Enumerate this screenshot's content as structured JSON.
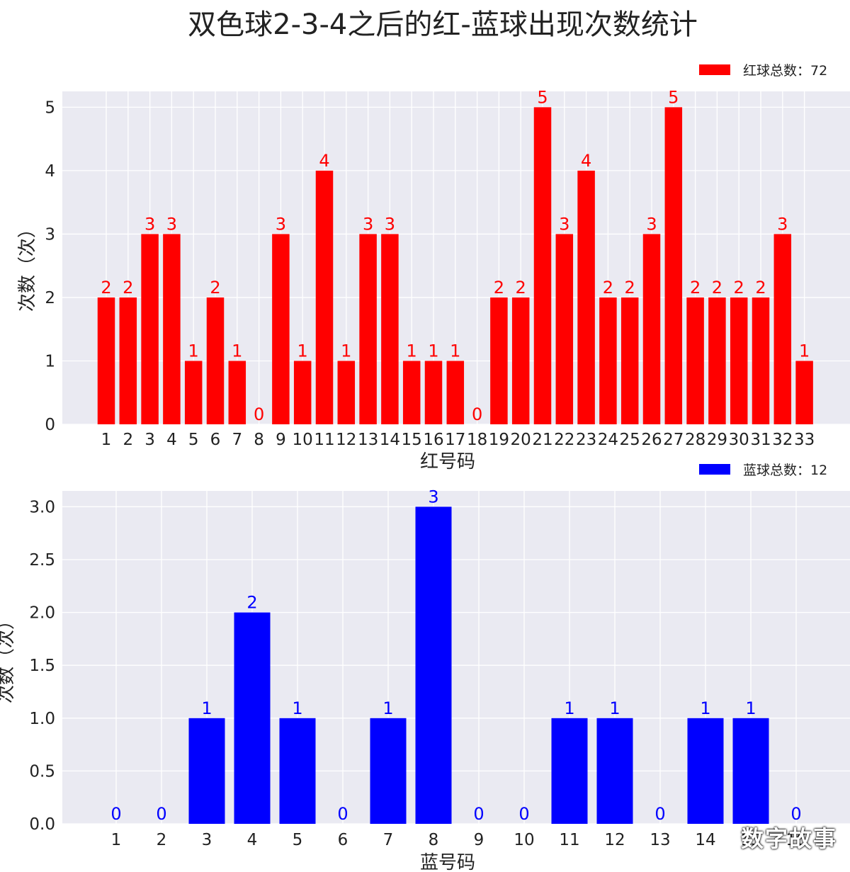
{
  "title": "双色球2-3-4之后的红-蓝球出现次数统计",
  "watermark": "数字故事",
  "colors": {
    "red": "#ff0000",
    "blue": "#0000ff",
    "background": "#eaeaf2",
    "grid": "#ffffff",
    "text": "#222222"
  },
  "chart_data": [
    {
      "type": "bar",
      "legend": "红球总数：72",
      "xlabel": "红号码",
      "ylabel": "次数（次）",
      "ylim": [
        0,
        5.25
      ],
      "yticks": [
        "0",
        "1",
        "2",
        "3",
        "4",
        "5"
      ],
      "color": "#ff0000",
      "categories": [
        "1",
        "2",
        "3",
        "4",
        "5",
        "6",
        "7",
        "8",
        "9",
        "10",
        "11",
        "12",
        "13",
        "14",
        "15",
        "16",
        "17",
        "18",
        "19",
        "20",
        "21",
        "22",
        "23",
        "24",
        "25",
        "26",
        "27",
        "28",
        "29",
        "30",
        "31",
        "32",
        "33"
      ],
      "values": [
        2,
        2,
        3,
        3,
        1,
        2,
        1,
        0,
        3,
        1,
        4,
        1,
        3,
        3,
        1,
        1,
        1,
        0,
        2,
        2,
        5,
        3,
        4,
        2,
        2,
        3,
        5,
        2,
        2,
        2,
        2,
        3,
        1
      ],
      "data_labels": [
        "2",
        "2",
        "3",
        "3",
        "1",
        "2",
        "1",
        "0",
        "3",
        "1",
        "4",
        "1",
        "3",
        "3",
        "1",
        "1",
        "1",
        "0",
        "2",
        "2",
        "5",
        "3",
        "4",
        "2",
        "2",
        "3",
        "5",
        "2",
        "2",
        "2",
        "2",
        "3",
        "1"
      ]
    },
    {
      "type": "bar",
      "legend": "蓝球总数：12",
      "xlabel": "蓝号码",
      "ylabel": "次数（次）",
      "ylim": [
        0,
        3.15
      ],
      "yticks": [
        "0.0",
        "0.5",
        "1.0",
        "1.5",
        "2.0",
        "2.5",
        "3.0"
      ],
      "color": "#0000ff",
      "categories": [
        "1",
        "2",
        "3",
        "4",
        "5",
        "6",
        "7",
        "8",
        "9",
        "10",
        "11",
        "12",
        "13",
        "14",
        "15",
        "16"
      ],
      "values": [
        0,
        0,
        1,
        2,
        1,
        0,
        1,
        3,
        0,
        0,
        1,
        1,
        0,
        1,
        1,
        0
      ],
      "data_labels": [
        "0",
        "0",
        "1",
        "2",
        "1",
        "0",
        "1",
        "3",
        "0",
        "0",
        "1",
        "1",
        "0",
        "1",
        "1",
        "0"
      ]
    }
  ]
}
